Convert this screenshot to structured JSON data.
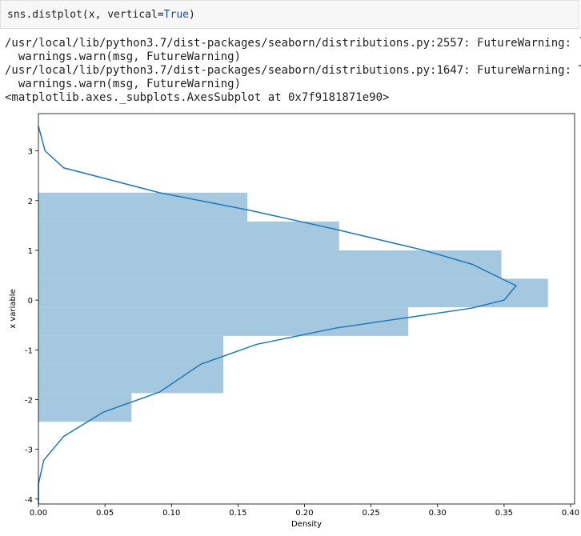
{
  "code": [
    "sns.distplot(x, vertical=",
    "True",
    ")"
  ],
  "output": [
    "/usr/local/lib/python3.7/dist-packages/seaborn/distributions.py:2557: FutureWarning: `",
    "  warnings.warn(msg, FutureWarning)",
    "/usr/local/lib/python3.7/dist-packages/seaborn/distributions.py:1647: FutureWarning: T",
    "  warnings.warn(msg, FutureWarning)",
    "<matplotlib.axes._subplots.AxesSubplot at 0x7f9181871e90>"
  ],
  "chart_data": {
    "type": "histogram",
    "orientation": "horizontal",
    "xlabel": "Density",
    "ylabel": "x variable",
    "bins": [
      -2.445,
      -1.87,
      -1.295,
      -0.72,
      -0.145,
      0.43,
      1.0,
      1.58,
      2.16
    ],
    "values": [
      0.07,
      0.139,
      0.139,
      0.278,
      0.383,
      0.348,
      0.226,
      0.157
    ],
    "color": "#a5c8e1",
    "kde": {
      "x": [
        -4.1,
        -3.7,
        -3.22,
        -2.74,
        -2.25,
        -1.85,
        -1.29,
        -0.89,
        -0.56,
        -0.35,
        -0.16,
        0,
        0.29,
        0.72,
        1.0,
        1.42,
        1.81,
        2.16,
        2.66,
        3.0,
        3.5
      ],
      "values": [
        0,
        0,
        0.004,
        0.019,
        0.049,
        0.091,
        0.122,
        0.164,
        0.224,
        0.278,
        0.326,
        0.35,
        0.359,
        0.326,
        0.29,
        0.224,
        0.158,
        0.091,
        0.019,
        0.005,
        0
      ],
      "color": "#1f77b4"
    },
    "xlim": [
      0,
      0.403
    ],
    "ylim": [
      -4.1,
      3.75
    ],
    "xticks": [
      {
        "value": 0,
        "label": "0.00"
      },
      {
        "value": 0.05,
        "label": "0.05"
      },
      {
        "value": 0.1,
        "label": "0.10"
      },
      {
        "value": 0.15,
        "label": "0.15"
      },
      {
        "value": 0.2,
        "label": "0.20"
      },
      {
        "value": 0.25,
        "label": "0.25"
      },
      {
        "value": 0.3,
        "label": "0.30"
      },
      {
        "value": 0.35,
        "label": "0.35"
      },
      {
        "value": 0.4,
        "label": "0.40"
      }
    ],
    "yticks": [
      -4,
      -3,
      -2,
      -1,
      0,
      1,
      2,
      3
    ]
  }
}
